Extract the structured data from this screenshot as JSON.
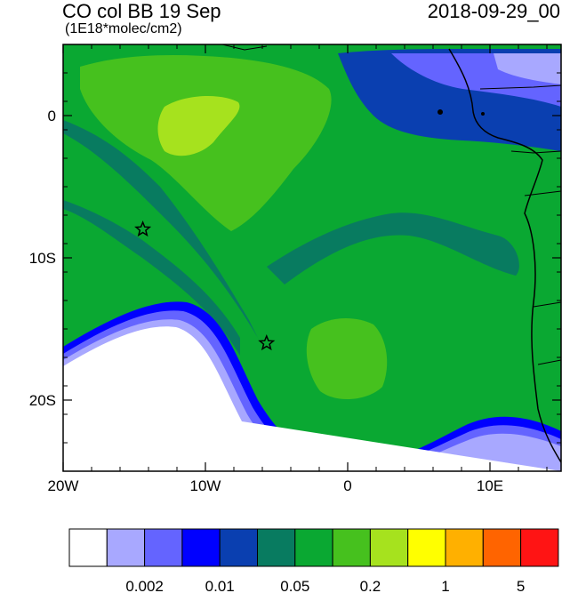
{
  "header": {
    "title": "CO col BB 19 Sep",
    "units": "(1E18*molec/cm2)",
    "valid_time": "2018-09-29_00"
  },
  "map": {
    "lon_range": [
      -20,
      15
    ],
    "lat_range": [
      -25,
      5
    ],
    "x_ticks": [
      {
        "lon": -20,
        "label": "20W"
      },
      {
        "lon": -10,
        "label": "10W"
      },
      {
        "lon": 0,
        "label": "0"
      },
      {
        "lon": 10,
        "label": "10E"
      }
    ],
    "y_ticks": [
      {
        "lat": 0,
        "label": "0"
      },
      {
        "lat": -10,
        "label": "10S"
      },
      {
        "lat": -20,
        "label": "20S"
      }
    ],
    "stations": [
      {
        "name": "station-ascension",
        "lon": -14.4,
        "lat": -8.0
      },
      {
        "name": "station-st-helena",
        "lon": -5.7,
        "lat": -16.0
      }
    ]
  },
  "colorbar": {
    "colors": [
      "#ffffff",
      "#a8a8ff",
      "#6464ff",
      "#0000ff",
      "#0a3fb0",
      "#087b60",
      "#0aa832",
      "#46c11e",
      "#a6e21e",
      "#ffff00",
      "#ffb000",
      "#ff6400",
      "#ff1414"
    ],
    "labels": [
      {
        "after_box": 2,
        "text": "0.002"
      },
      {
        "after_box": 4,
        "text": "0.01"
      },
      {
        "after_box": 6,
        "text": "0.05"
      },
      {
        "after_box": 8,
        "text": "0.2"
      },
      {
        "after_box": 10,
        "text": "1"
      },
      {
        "after_box": 12,
        "text": "5"
      }
    ]
  }
}
